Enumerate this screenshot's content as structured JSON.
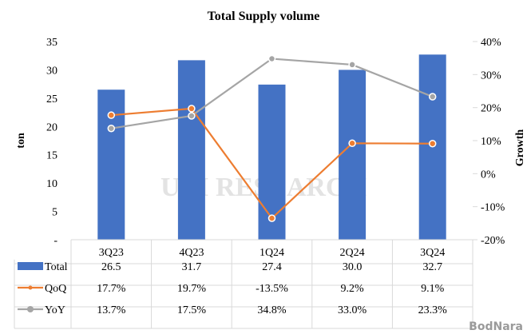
{
  "chart_data": {
    "type": "bar+line",
    "title": "Total Supply volume",
    "ylabel": "ton",
    "y2label": "Growth",
    "ylim": [
      0,
      35
    ],
    "y2lim": [
      -20,
      40
    ],
    "yticks": [
      "-",
      "5",
      "10",
      "15",
      "20",
      "25",
      "30",
      "35"
    ],
    "y2ticks": [
      "-20%",
      "-10%",
      "0%",
      "10%",
      "20%",
      "30%",
      "40%"
    ],
    "categories": [
      "3Q23",
      "4Q23",
      "1Q24",
      "2Q24",
      "3Q24"
    ],
    "series": [
      {
        "name": "Total",
        "type": "bar",
        "axis": "left",
        "values": [
          26.5,
          31.7,
          27.4,
          30.0,
          32.7
        ],
        "labels": [
          "26.5",
          "31.7",
          "27.4",
          "30.0",
          "32.7"
        ],
        "color": "#4472c4"
      },
      {
        "name": "QoQ",
        "type": "line",
        "axis": "right",
        "values": [
          17.7,
          19.7,
          -13.5,
          9.2,
          9.1
        ],
        "labels": [
          "17.7%",
          "19.7%",
          "-13.5%",
          "9.2%",
          "9.1%"
        ],
        "color": "#ed7d31"
      },
      {
        "name": "YoY",
        "type": "line",
        "axis": "right",
        "values": [
          13.7,
          17.5,
          34.8,
          33.0,
          23.3
        ],
        "labels": [
          "13.7%",
          "17.5%",
          "34.8%",
          "33.0%",
          "23.3%"
        ],
        "color": "#a5a5a5"
      }
    ],
    "legend": "data-table-bottom"
  },
  "watermark": "UBI RESEARCH",
  "logo": "BodNara"
}
